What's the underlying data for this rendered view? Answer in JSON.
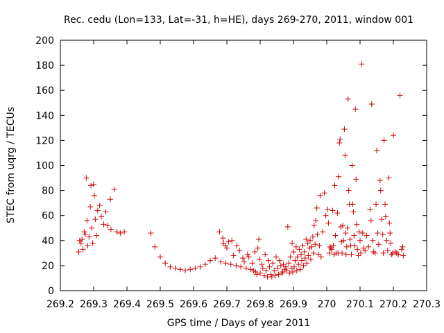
{
  "chart_data": {
    "type": "scatter",
    "title": "Rec. cedu (Lon=133, Lat=-31, h=HE), days 269-270, 2011, window 001",
    "xlabel": "GPS time / Days of year 2011",
    "ylabel": "STEC from uqrg / TECUs",
    "xlim": [
      269.2,
      270.3
    ],
    "ylim": [
      0,
      200
    ],
    "x_ticks": [
      269.2,
      269.3,
      269.4,
      269.5,
      269.6,
      269.7,
      269.8,
      269.9,
      270,
      270.1,
      270.2,
      270.3
    ],
    "x_tick_labels": [
      "269.2",
      "269.3",
      "269.4",
      "269.5",
      "269.6",
      "269.7",
      "269.8",
      "269.9",
      "270",
      "270.1",
      "270.2",
      "270.3"
    ],
    "y_ticks": [
      0,
      20,
      40,
      60,
      80,
      100,
      120,
      140,
      160,
      180,
      200
    ],
    "y_tick_labels": [
      "0",
      "20",
      "40",
      "60",
      "80",
      "100",
      "120",
      "140",
      "160",
      "180",
      "200"
    ],
    "grid": false,
    "marker": "+",
    "marker_color": "#cc0000",
    "points": [
      [
        269.255,
        31
      ],
      [
        269.258,
        40
      ],
      [
        269.262,
        38
      ],
      [
        269.265,
        41
      ],
      [
        269.268,
        33
      ],
      [
        269.272,
        47
      ],
      [
        269.275,
        45
      ],
      [
        269.278,
        90
      ],
      [
        269.28,
        56
      ],
      [
        269.282,
        36
      ],
      [
        269.286,
        43
      ],
      [
        269.29,
        67
      ],
      [
        269.292,
        84
      ],
      [
        269.294,
        50
      ],
      [
        269.297,
        38
      ],
      [
        269.3,
        85
      ],
      [
        269.302,
        76
      ],
      [
        269.305,
        57
      ],
      [
        269.308,
        44
      ],
      [
        269.312,
        64
      ],
      [
        269.318,
        68
      ],
      [
        269.323,
        59
      ],
      [
        269.33,
        53
      ],
      [
        269.336,
        63
      ],
      [
        269.342,
        52
      ],
      [
        269.35,
        73
      ],
      [
        269.352,
        49
      ],
      [
        269.362,
        81
      ],
      [
        269.37,
        47
      ],
      [
        269.38,
        46
      ],
      [
        269.392,
        47
      ],
      [
        269.472,
        46
      ],
      [
        269.484,
        35
      ],
      [
        269.5,
        27
      ],
      [
        269.515,
        22
      ],
      [
        269.53,
        19
      ],
      [
        269.545,
        18
      ],
      [
        269.56,
        17
      ],
      [
        269.575,
        16
      ],
      [
        269.59,
        17
      ],
      [
        269.605,
        18
      ],
      [
        269.62,
        19
      ],
      [
        269.635,
        21
      ],
      [
        269.65,
        24
      ],
      [
        269.665,
        26
      ],
      [
        269.678,
        47
      ],
      [
        269.682,
        23
      ],
      [
        269.688,
        42
      ],
      [
        269.69,
        38
      ],
      [
        269.695,
        36
      ],
      [
        269.697,
        22
      ],
      [
        269.7,
        34
      ],
      [
        269.705,
        39
      ],
      [
        269.712,
        21
      ],
      [
        269.715,
        40
      ],
      [
        269.72,
        28
      ],
      [
        269.728,
        20
      ],
      [
        269.73,
        36
      ],
      [
        269.738,
        32
      ],
      [
        269.742,
        19
      ],
      [
        269.748,
        26
      ],
      [
        269.752,
        23
      ],
      [
        269.758,
        18
      ],
      [
        269.762,
        29
      ],
      [
        269.766,
        27
      ],
      [
        269.772,
        17
      ],
      [
        269.776,
        22
      ],
      [
        269.78,
        16
      ],
      [
        269.784,
        31
      ],
      [
        269.786,
        15
      ],
      [
        269.79,
        13
      ],
      [
        269.793,
        34
      ],
      [
        269.796,
        41
      ],
      [
        269.798,
        25
      ],
      [
        269.8,
        14
      ],
      [
        269.805,
        21
      ],
      [
        269.808,
        18
      ],
      [
        269.812,
        12
      ],
      [
        269.815,
        29
      ],
      [
        269.818,
        16
      ],
      [
        269.822,
        11
      ],
      [
        269.825,
        24
      ],
      [
        269.828,
        19
      ],
      [
        269.832,
        13
      ],
      [
        269.835,
        11
      ],
      [
        269.838,
        22
      ],
      [
        269.842,
        16
      ],
      [
        269.845,
        12
      ],
      [
        269.848,
        27
      ],
      [
        269.852,
        18
      ],
      [
        269.855,
        13
      ],
      [
        269.858,
        24
      ],
      [
        269.862,
        20
      ],
      [
        269.865,
        14
      ],
      [
        269.868,
        15
      ],
      [
        269.87,
        21
      ],
      [
        269.874,
        17
      ],
      [
        269.877,
        19
      ],
      [
        269.88,
        16
      ],
      [
        269.883,
        51
      ],
      [
        269.886,
        22
      ],
      [
        269.888,
        14
      ],
      [
        269.891,
        27
      ],
      [
        269.893,
        18
      ],
      [
        269.896,
        38
      ],
      [
        269.898,
        15
      ],
      [
        269.9,
        31
      ],
      [
        269.902,
        19
      ],
      [
        269.905,
        24
      ],
      [
        269.908,
        35
      ],
      [
        269.91,
        16
      ],
      [
        269.912,
        27
      ],
      [
        269.915,
        21
      ],
      [
        269.918,
        33
      ],
      [
        269.92,
        17
      ],
      [
        269.923,
        29
      ],
      [
        269.925,
        24
      ],
      [
        269.928,
        36
      ],
      [
        269.93,
        20
      ],
      [
        269.933,
        31
      ],
      [
        269.935,
        26
      ],
      [
        269.938,
        41
      ],
      [
        269.94,
        22
      ],
      [
        269.943,
        38
      ],
      [
        269.945,
        28
      ],
      [
        269.948,
        34
      ],
      [
        269.95,
        40
      ],
      [
        269.952,
        25
      ],
      [
        269.955,
        35
      ],
      [
        269.958,
        43
      ],
      [
        269.96,
        30
      ],
      [
        269.962,
        52
      ],
      [
        269.965,
        37
      ],
      [
        269.967,
        56
      ],
      [
        269.97,
        66
      ],
      [
        269.972,
        45
      ],
      [
        269.975,
        29
      ],
      [
        269.978,
        36
      ],
      [
        269.98,
        76
      ],
      [
        269.983,
        27
      ],
      [
        269.988,
        47
      ],
      [
        269.993,
        78
      ],
      [
        269.997,
        60
      ],
      [
        270.002,
        65
      ],
      [
        270.005,
        54
      ],
      [
        270.008,
        30
      ],
      [
        270.01,
        35
      ],
      [
        270.012,
        34
      ],
      [
        270.015,
        33
      ],
      [
        270.018,
        64
      ],
      [
        270.02,
        36
      ],
      [
        270.022,
        29
      ],
      [
        270.024,
        84
      ],
      [
        270.026,
        44
      ],
      [
        270.028,
        30
      ],
      [
        270.032,
        62
      ],
      [
        270.034,
        30
      ],
      [
        270.036,
        91
      ],
      [
        270.038,
        118
      ],
      [
        270.04,
        121
      ],
      [
        270.042,
        51
      ],
      [
        270.044,
        39
      ],
      [
        270.046,
        30
      ],
      [
        270.048,
        52
      ],
      [
        270.05,
        40
      ],
      [
        270.053,
        129
      ],
      [
        270.055,
        108
      ],
      [
        270.057,
        46
      ],
      [
        270.058,
        29
      ],
      [
        270.06,
        35
      ],
      [
        270.062,
        50
      ],
      [
        270.064,
        153
      ],
      [
        270.066,
        80
      ],
      [
        270.068,
        69
      ],
      [
        270.07,
        41
      ],
      [
        270.072,
        36
      ],
      [
        270.074,
        29
      ],
      [
        270.076,
        100
      ],
      [
        270.078,
        69
      ],
      [
        270.08,
        63
      ],
      [
        270.082,
        44
      ],
      [
        270.084,
        36
      ],
      [
        270.086,
        145
      ],
      [
        270.088,
        89
      ],
      [
        270.09,
        53
      ],
      [
        270.092,
        33
      ],
      [
        270.095,
        28
      ],
      [
        270.097,
        47
      ],
      [
        270.1,
        40
      ],
      [
        270.102,
        30
      ],
      [
        270.105,
        181
      ],
      [
        270.108,
        46
      ],
      [
        270.11,
        34
      ],
      [
        270.115,
        32
      ],
      [
        270.12,
        44
      ],
      [
        270.125,
        35
      ],
      [
        270.13,
        65
      ],
      [
        270.133,
        56
      ],
      [
        270.135,
        149
      ],
      [
        270.138,
        40
      ],
      [
        270.14,
        31
      ],
      [
        270.145,
        30
      ],
      [
        270.148,
        69
      ],
      [
        270.15,
        112
      ],
      [
        270.153,
        46
      ],
      [
        270.156,
        37
      ],
      [
        270.16,
        88
      ],
      [
        270.162,
        80
      ],
      [
        270.165,
        57
      ],
      [
        270.168,
        45
      ],
      [
        270.17,
        30
      ],
      [
        270.172,
        120
      ],
      [
        270.175,
        69
      ],
      [
        270.177,
        59
      ],
      [
        270.18,
        40
      ],
      [
        270.183,
        32
      ],
      [
        270.186,
        90
      ],
      [
        270.188,
        54
      ],
      [
        270.19,
        46
      ],
      [
        270.192,
        38
      ],
      [
        270.195,
        29
      ],
      [
        270.198,
        30
      ],
      [
        270.2,
        124
      ],
      [
        270.205,
        31
      ],
      [
        270.21,
        30
      ],
      [
        270.215,
        29
      ],
      [
        270.22,
        156
      ],
      [
        270.225,
        33
      ],
      [
        270.228,
        35
      ],
      [
        270.23,
        28
      ]
    ]
  }
}
